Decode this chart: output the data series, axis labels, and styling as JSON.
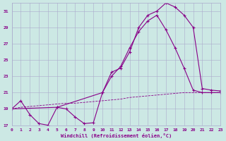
{
  "xlabel": "Windchill (Refroidissement éolien,°C)",
  "bg_color": "#cce8e4",
  "grid_color": "#aaaacc",
  "line_color": "#880088",
  "xlim": [
    0,
    23
  ],
  "ylim": [
    17,
    32
  ],
  "yticks": [
    17,
    19,
    21,
    23,
    25,
    27,
    29,
    31
  ],
  "xticks": [
    0,
    1,
    2,
    3,
    4,
    5,
    6,
    7,
    8,
    9,
    10,
    11,
    12,
    13,
    14,
    15,
    16,
    17,
    18,
    19,
    20,
    21,
    22,
    23
  ],
  "line1_x": [
    0,
    1,
    2,
    3,
    4,
    5,
    6,
    7,
    8,
    9,
    10,
    11,
    12,
    13,
    14,
    15,
    16,
    17,
    18,
    19,
    20,
    21,
    22,
    23
  ],
  "line1_y": [
    19.0,
    20.0,
    18.3,
    17.2,
    17.0,
    19.2,
    19.0,
    18.0,
    17.2,
    17.3,
    21.0,
    23.5,
    24.0,
    26.0,
    29.0,
    30.5,
    31.0,
    32.0,
    31.5,
    30.5,
    29.0,
    21.5,
    21.3,
    21.2
  ],
  "line2_x": [
    0,
    5,
    10,
    11,
    12,
    13,
    14,
    15,
    16,
    17,
    18,
    19,
    20,
    21,
    22,
    23
  ],
  "line2_y": [
    19.0,
    19.2,
    21.0,
    23.0,
    24.2,
    26.5,
    28.5,
    29.8,
    30.5,
    28.7,
    26.5,
    24.0,
    21.3,
    21.0,
    21.0,
    21.0
  ],
  "line3_x": [
    0,
    1,
    2,
    3,
    4,
    5,
    6,
    7,
    8,
    9,
    10,
    11,
    12,
    13,
    14,
    15,
    16,
    17,
    18,
    19,
    20,
    21,
    22,
    23
  ],
  "line3_y": [
    19.0,
    19.2,
    19.3,
    19.4,
    19.5,
    19.6,
    19.7,
    19.7,
    19.8,
    19.9,
    20.0,
    20.1,
    20.2,
    20.4,
    20.5,
    20.6,
    20.7,
    20.8,
    20.9,
    21.0,
    21.0,
    21.0,
    21.0,
    21.0
  ]
}
